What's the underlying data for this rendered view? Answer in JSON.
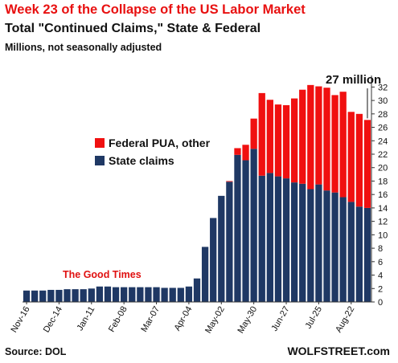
{
  "header": {
    "title": "Week 23 of the Collapse of the US Labor Market",
    "subtitle": "Total \"Continued Claims,\" State & Federal",
    "units": "Millions, not seasonally adjusted"
  },
  "footer": {
    "source": "Source: DOL",
    "brand": "WOLFSTREET.com"
  },
  "colors": {
    "federal": "#f01010",
    "state": "#1f3864",
    "annotation_red": "#e01010"
  },
  "chart_data": {
    "type": "bar",
    "stacked": true,
    "x_tick_labels": [
      "Nov-16",
      "Dec-14",
      "Jan-11",
      "Feb-08",
      "Mar-07",
      "Apr-04",
      "May-02",
      "May-30",
      "Jun-27",
      "Jul-25",
      "Aug-22"
    ],
    "x_tick_every": 4,
    "series": [
      {
        "name": "State claims",
        "color": "#1f3864",
        "values": [
          1.7,
          1.7,
          1.7,
          1.8,
          1.8,
          1.9,
          1.9,
          1.9,
          2.0,
          2.3,
          2.3,
          2.2,
          2.2,
          2.2,
          2.2,
          2.2,
          2.2,
          2.1,
          2.1,
          2.1,
          2.3,
          3.5,
          8.2,
          12.5,
          15.8,
          17.9,
          21.9,
          21.1,
          22.8,
          18.8,
          19.2,
          18.7,
          18.4,
          17.8,
          17.6,
          16.8,
          17.5,
          16.6,
          16.3,
          15.6,
          14.9,
          14.2,
          14.0
        ]
      },
      {
        "name": "Federal PUA, other",
        "color": "#f01010",
        "values": [
          0,
          0,
          0,
          0,
          0,
          0,
          0,
          0,
          0,
          0,
          0,
          0,
          0,
          0,
          0,
          0,
          0,
          0,
          0,
          0,
          0,
          0,
          0,
          0,
          0,
          0.1,
          1.0,
          2.3,
          4.5,
          12.3,
          10.9,
          10.7,
          10.9,
          12.5,
          14.0,
          15.5,
          14.6,
          15.3,
          14.5,
          15.7,
          13.4,
          13.8,
          13.1
        ]
      }
    ],
    "ylim": [
      0,
      33
    ],
    "yticks": [
      0,
      2,
      4,
      6,
      8,
      10,
      12,
      14,
      16,
      18,
      20,
      22,
      24,
      26,
      28,
      30,
      32
    ],
    "y_axis_side": "right",
    "legend_position": "inside-left",
    "grid": false,
    "annotations": [
      {
        "text": "The Good Times",
        "color": "#e01010"
      },
      {
        "text": "27 million",
        "color": "#111111"
      }
    ]
  }
}
